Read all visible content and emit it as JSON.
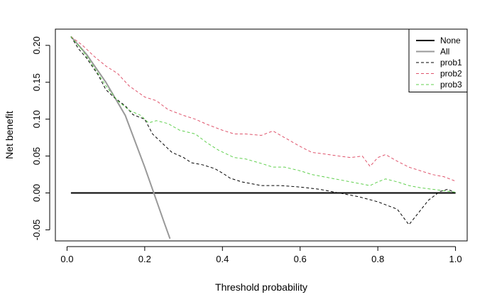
{
  "chart_data": {
    "type": "line",
    "title": "",
    "xlabel": "Threshold probability",
    "ylabel": "Net benefit",
    "xlim": [
      -0.03,
      1.03
    ],
    "ylim": [
      -0.065,
      0.222
    ],
    "x_ticks": [
      {
        "value": 0.0,
        "label": "0.0"
      },
      {
        "value": 0.2,
        "label": "0.2"
      },
      {
        "value": 0.4,
        "label": "0.4"
      },
      {
        "value": 0.6,
        "label": "0.6"
      },
      {
        "value": 0.8,
        "label": "0.8"
      },
      {
        "value": 1.0,
        "label": "1.0"
      }
    ],
    "y_ticks": [
      {
        "value": -0.05,
        "label": "-0.05"
      },
      {
        "value": 0.0,
        "label": "0.00"
      },
      {
        "value": 0.05,
        "label": "0.05"
      },
      {
        "value": 0.1,
        "label": "0.10"
      },
      {
        "value": 0.15,
        "label": "0.15"
      },
      {
        "value": 0.2,
        "label": "0.20"
      }
    ],
    "legend_position": "top-right",
    "series": [
      {
        "name": "None",
        "color": "#000000",
        "dash": "solid",
        "width": 2,
        "points": [
          [
            0.01,
            0.0
          ],
          [
            1.0,
            0.0
          ]
        ]
      },
      {
        "name": "All",
        "color": "#999999",
        "dash": "solid",
        "width": 2,
        "points": [
          [
            0.01,
            0.212
          ],
          [
            0.05,
            0.188
          ],
          [
            0.1,
            0.15
          ],
          [
            0.15,
            0.105
          ],
          [
            0.2,
            0.035
          ],
          [
            0.22,
            0.005
          ],
          [
            0.25,
            -0.04
          ],
          [
            0.265,
            -0.062
          ]
        ]
      },
      {
        "name": "prob1",
        "color": "#000000",
        "dash": "dashed",
        "width": 1,
        "points": [
          [
            0.01,
            0.212
          ],
          [
            0.03,
            0.195
          ],
          [
            0.05,
            0.183
          ],
          [
            0.08,
            0.16
          ],
          [
            0.1,
            0.14
          ],
          [
            0.12,
            0.13
          ],
          [
            0.15,
            0.118
          ],
          [
            0.17,
            0.106
          ],
          [
            0.2,
            0.1
          ],
          [
            0.22,
            0.08
          ],
          [
            0.25,
            0.065
          ],
          [
            0.27,
            0.055
          ],
          [
            0.3,
            0.048
          ],
          [
            0.32,
            0.041
          ],
          [
            0.35,
            0.038
          ],
          [
            0.38,
            0.033
          ],
          [
            0.4,
            0.027
          ],
          [
            0.42,
            0.02
          ],
          [
            0.45,
            0.015
          ],
          [
            0.48,
            0.012
          ],
          [
            0.5,
            0.01
          ],
          [
            0.55,
            0.01
          ],
          [
            0.6,
            0.008
          ],
          [
            0.65,
            0.005
          ],
          [
            0.7,
            0.0
          ],
          [
            0.75,
            -0.005
          ],
          [
            0.8,
            -0.012
          ],
          [
            0.85,
            -0.022
          ],
          [
            0.88,
            -0.043
          ],
          [
            0.9,
            -0.03
          ],
          [
            0.93,
            -0.01
          ],
          [
            0.96,
            0.002
          ],
          [
            0.98,
            0.005
          ],
          [
            1.0,
            0.0
          ]
        ]
      },
      {
        "name": "prob2",
        "color": "#df536b",
        "dash": "dashed",
        "width": 1,
        "points": [
          [
            0.01,
            0.212
          ],
          [
            0.04,
            0.2
          ],
          [
            0.07,
            0.185
          ],
          [
            0.1,
            0.172
          ],
          [
            0.13,
            0.162
          ],
          [
            0.16,
            0.145
          ],
          [
            0.2,
            0.13
          ],
          [
            0.23,
            0.125
          ],
          [
            0.26,
            0.113
          ],
          [
            0.3,
            0.105
          ],
          [
            0.33,
            0.1
          ],
          [
            0.36,
            0.093
          ],
          [
            0.4,
            0.085
          ],
          [
            0.43,
            0.08
          ],
          [
            0.46,
            0.08
          ],
          [
            0.5,
            0.078
          ],
          [
            0.53,
            0.084
          ],
          [
            0.56,
            0.075
          ],
          [
            0.6,
            0.063
          ],
          [
            0.63,
            0.055
          ],
          [
            0.66,
            0.053
          ],
          [
            0.7,
            0.05
          ],
          [
            0.73,
            0.048
          ],
          [
            0.76,
            0.05
          ],
          [
            0.78,
            0.036
          ],
          [
            0.8,
            0.048
          ],
          [
            0.82,
            0.052
          ],
          [
            0.85,
            0.043
          ],
          [
            0.88,
            0.035
          ],
          [
            0.91,
            0.03
          ],
          [
            0.94,
            0.025
          ],
          [
            0.97,
            0.022
          ],
          [
            1.0,
            0.016
          ]
        ]
      },
      {
        "name": "prob3",
        "color": "#61d04f",
        "dash": "dashed",
        "width": 1,
        "points": [
          [
            0.01,
            0.212
          ],
          [
            0.04,
            0.193
          ],
          [
            0.07,
            0.17
          ],
          [
            0.1,
            0.145
          ],
          [
            0.13,
            0.125
          ],
          [
            0.16,
            0.112
          ],
          [
            0.19,
            0.105
          ],
          [
            0.21,
            0.095
          ],
          [
            0.23,
            0.098
          ],
          [
            0.26,
            0.094
          ],
          [
            0.29,
            0.085
          ],
          [
            0.33,
            0.08
          ],
          [
            0.36,
            0.068
          ],
          [
            0.39,
            0.058
          ],
          [
            0.43,
            0.048
          ],
          [
            0.46,
            0.046
          ],
          [
            0.5,
            0.04
          ],
          [
            0.53,
            0.035
          ],
          [
            0.56,
            0.035
          ],
          [
            0.6,
            0.03
          ],
          [
            0.63,
            0.025
          ],
          [
            0.66,
            0.022
          ],
          [
            0.7,
            0.018
          ],
          [
            0.73,
            0.015
          ],
          [
            0.76,
            0.012
          ],
          [
            0.78,
            0.01
          ],
          [
            0.8,
            0.015
          ],
          [
            0.82,
            0.019
          ],
          [
            0.85,
            0.015
          ],
          [
            0.88,
            0.01
          ],
          [
            0.91,
            0.007
          ],
          [
            0.94,
            0.005
          ],
          [
            0.97,
            0.003
          ],
          [
            1.0,
            0.001
          ]
        ]
      }
    ]
  }
}
